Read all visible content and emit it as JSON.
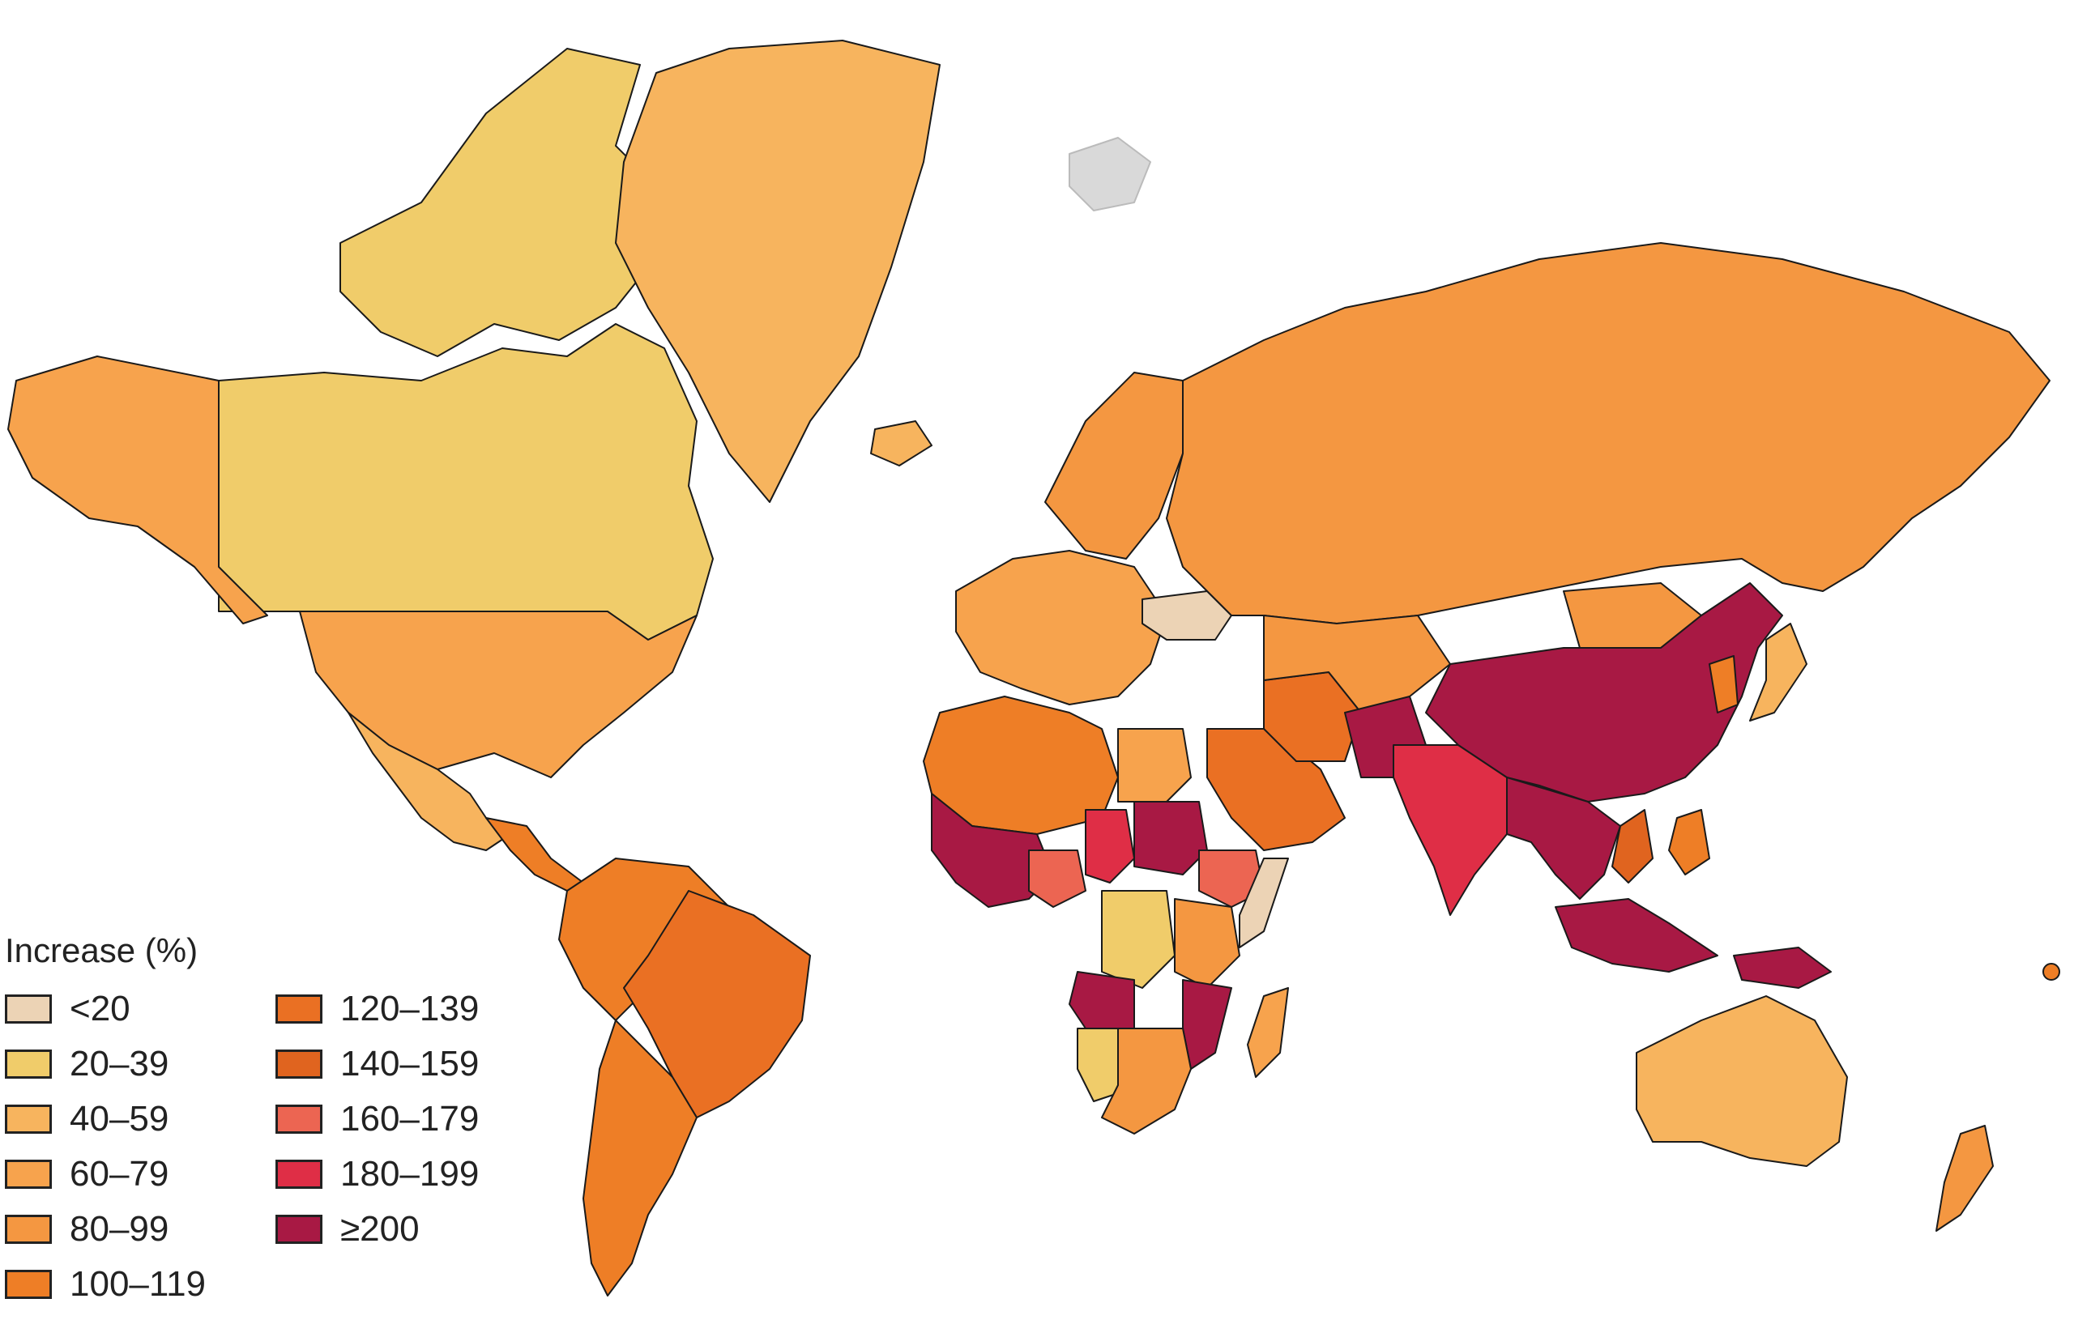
{
  "legend": {
    "title": "Increase (%)",
    "items": [
      {
        "label": "<20",
        "color": "#ecd3b5"
      },
      {
        "label": "20–39",
        "color": "#f0cc6a"
      },
      {
        "label": "40–59",
        "color": "#f7b45e"
      },
      {
        "label": "60–79",
        "color": "#f7a34d"
      },
      {
        "label": "80–99",
        "color": "#f49741"
      },
      {
        "label": "100–119",
        "color": "#ee7e26"
      },
      {
        "label": "120–139",
        "color": "#ea7023"
      },
      {
        "label": "140–159",
        "color": "#e0641f"
      },
      {
        "label": "160–179",
        "color": "#ec6552"
      },
      {
        "label": "180–199",
        "color": "#df2e46"
      },
      {
        "label": "≥200",
        "color": "#a81944"
      }
    ]
  },
  "nodata_color": "#d9d9d9",
  "regions": [
    {
      "name": "canada-arctic-islands",
      "category": "20–39"
    },
    {
      "name": "canada",
      "category": "20–39"
    },
    {
      "name": "greenland",
      "category": "40–59"
    },
    {
      "name": "iceland",
      "category": "40–59"
    },
    {
      "name": "alaska",
      "category": "60–79"
    },
    {
      "name": "usa",
      "category": "60–79"
    },
    {
      "name": "mexico",
      "category": "40–59"
    },
    {
      "name": "central-america",
      "category": "100–119"
    },
    {
      "name": "south-america-north",
      "category": "100–119"
    },
    {
      "name": "brazil",
      "category": "120–139"
    },
    {
      "name": "south-america-south",
      "category": "100–119"
    },
    {
      "name": "europe-west",
      "category": "60–79"
    },
    {
      "name": "scandinavia",
      "category": "80–99"
    },
    {
      "name": "ukraine",
      "category": "<20"
    },
    {
      "name": "russia",
      "category": "80–99"
    },
    {
      "name": "north-africa",
      "category": "100–119"
    },
    {
      "name": "egypt",
      "category": "60–79"
    },
    {
      "name": "arabia",
      "category": "120–139"
    },
    {
      "name": "west-sahel",
      "category": "≥200"
    },
    {
      "name": "sudan",
      "category": "≥200"
    },
    {
      "name": "chad",
      "category": "180–199"
    },
    {
      "name": "nigeria",
      "category": "160–179"
    },
    {
      "name": "ethiopia",
      "category": "160–179"
    },
    {
      "name": "somalia",
      "category": "<20"
    },
    {
      "name": "drc",
      "category": "20–39"
    },
    {
      "name": "angola",
      "category": "≥200"
    },
    {
      "name": "east-africa",
      "category": "80–99"
    },
    {
      "name": "mozambique",
      "category": "≥200"
    },
    {
      "name": "southern-africa",
      "category": "80–99"
    },
    {
      "name": "namibia",
      "category": "20–39"
    },
    {
      "name": "madagascar",
      "category": "60–79"
    },
    {
      "name": "iran",
      "category": "120–139"
    },
    {
      "name": "central-asia",
      "category": "80–99"
    },
    {
      "name": "pakistan",
      "category": "≥200"
    },
    {
      "name": "india",
      "category": "180–199"
    },
    {
      "name": "china",
      "category": "≥200"
    },
    {
      "name": "mongolia",
      "category": "80–99"
    },
    {
      "name": "southeast-asia",
      "category": "≥200"
    },
    {
      "name": "vietnam",
      "category": "140–159"
    },
    {
      "name": "japan",
      "category": "40–59"
    },
    {
      "name": "korea",
      "category": "100–119"
    },
    {
      "name": "philippines",
      "category": "100–119"
    },
    {
      "name": "indonesia",
      "category": "≥200"
    },
    {
      "name": "papua",
      "category": "≥200"
    },
    {
      "name": "australia",
      "category": "40–59"
    },
    {
      "name": "new-zealand",
      "category": "80–99"
    },
    {
      "name": "svalbard",
      "category": "no-data"
    }
  ]
}
